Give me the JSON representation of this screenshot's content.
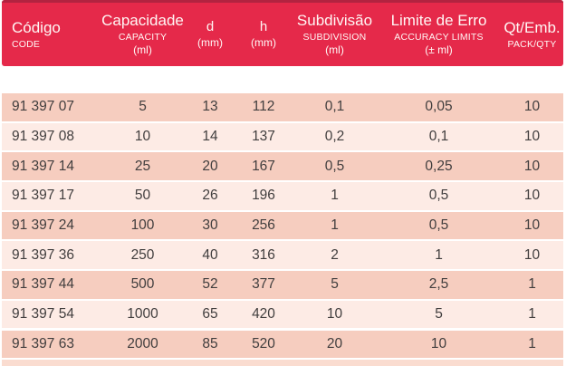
{
  "colors": {
    "header_red": "#e5294a",
    "header_top_edge": "#b22340",
    "header_text": "#fff7f5",
    "row_dark": "#f6cdbf",
    "row_light": "#fdebe5",
    "bottom_strip": "#fadcd0",
    "row_text": "#413e3e"
  },
  "table": {
    "columns": [
      {
        "id": "codigo",
        "title": "Código",
        "subtitle": "CODE",
        "unit": ""
      },
      {
        "id": "capacidade",
        "title": "Capacidade",
        "subtitle": "CAPACITY",
        "unit": "(ml)"
      },
      {
        "id": "d",
        "title": "d",
        "subtitle": "",
        "unit": "(mm)"
      },
      {
        "id": "h",
        "title": "h",
        "subtitle": "",
        "unit": "(mm)"
      },
      {
        "id": "subdivisao",
        "title": "Subdivisão",
        "subtitle": "SUBDIVISION",
        "unit": "(ml)"
      },
      {
        "id": "limite",
        "title": "Limite de Erro",
        "subtitle": "ACCURACY LIMITS",
        "unit": "(± ml)"
      },
      {
        "id": "qt",
        "title": "Qt/Emb.",
        "subtitle": "PACK/QTY",
        "unit": ""
      }
    ],
    "rows": [
      {
        "codigo": "91 397 07",
        "capacidade": "5",
        "d": "13",
        "h": "112",
        "subdivisao": "0,1",
        "limite": "0,05",
        "qt": "10"
      },
      {
        "codigo": "91 397 08",
        "capacidade": "10",
        "d": "14",
        "h": "137",
        "subdivisao": "0,2",
        "limite": "0,1",
        "qt": "10"
      },
      {
        "codigo": "91 397 14",
        "capacidade": "25",
        "d": "20",
        "h": "167",
        "subdivisao": "0,5",
        "limite": "0,25",
        "qt": "10"
      },
      {
        "codigo": "91 397 17",
        "capacidade": "50",
        "d": "26",
        "h": "196",
        "subdivisao": "1",
        "limite": "0,5",
        "qt": "10"
      },
      {
        "codigo": "91 397 24",
        "capacidade": "100",
        "d": "30",
        "h": "256",
        "subdivisao": "1",
        "limite": "0,5",
        "qt": "10"
      },
      {
        "codigo": "91 397 36",
        "capacidade": "250",
        "d": "40",
        "h": "316",
        "subdivisao": "2",
        "limite": "1",
        "qt": "10"
      },
      {
        "codigo": "91 397 44",
        "capacidade": "500",
        "d": "52",
        "h": "377",
        "subdivisao": "5",
        "limite": "2,5",
        "qt": "1"
      },
      {
        "codigo": "91 397 54",
        "capacidade": "1000",
        "d": "65",
        "h": "420",
        "subdivisao": "10",
        "limite": "5",
        "qt": "1"
      },
      {
        "codigo": "91 397 63",
        "capacidade": "2000",
        "d": "85",
        "h": "520",
        "subdivisao": "20",
        "limite": "10",
        "qt": "1"
      }
    ]
  }
}
